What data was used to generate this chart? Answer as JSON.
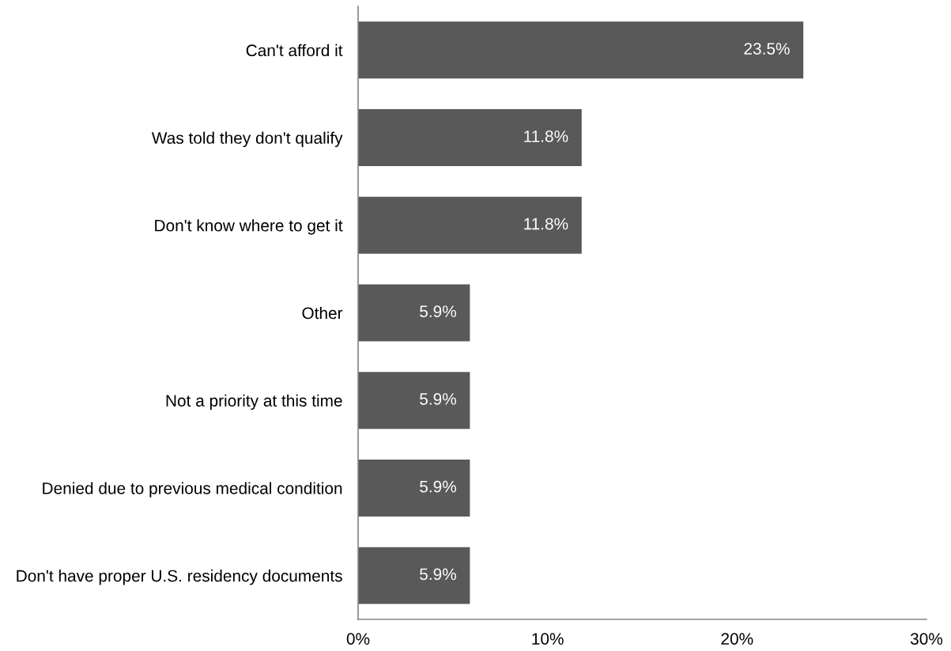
{
  "chart_data": {
    "type": "bar",
    "orientation": "horizontal",
    "categories": [
      "Can't afford it",
      "Was told they don't qualify",
      "Don't know where to get it",
      "Other",
      "Not a priority at this time",
      "Denied due to previous medical condition",
      "Don't have proper U.S. residency documents"
    ],
    "values": [
      23.5,
      11.8,
      11.8,
      5.9,
      5.9,
      5.9,
      5.9
    ],
    "value_labels": [
      "23.5%",
      "11.8%",
      "11.8%",
      "5.9%",
      "5.9%",
      "5.9%",
      "5.9%"
    ],
    "color": "#595959",
    "xlim": [
      0,
      30
    ],
    "xticks": [
      {
        "value": 0,
        "label": "0%"
      },
      {
        "value": 10,
        "label": "10%"
      },
      {
        "value": 20,
        "label": "20%"
      },
      {
        "value": 30,
        "label": "30%"
      }
    ],
    "grid": false,
    "legend": false
  }
}
